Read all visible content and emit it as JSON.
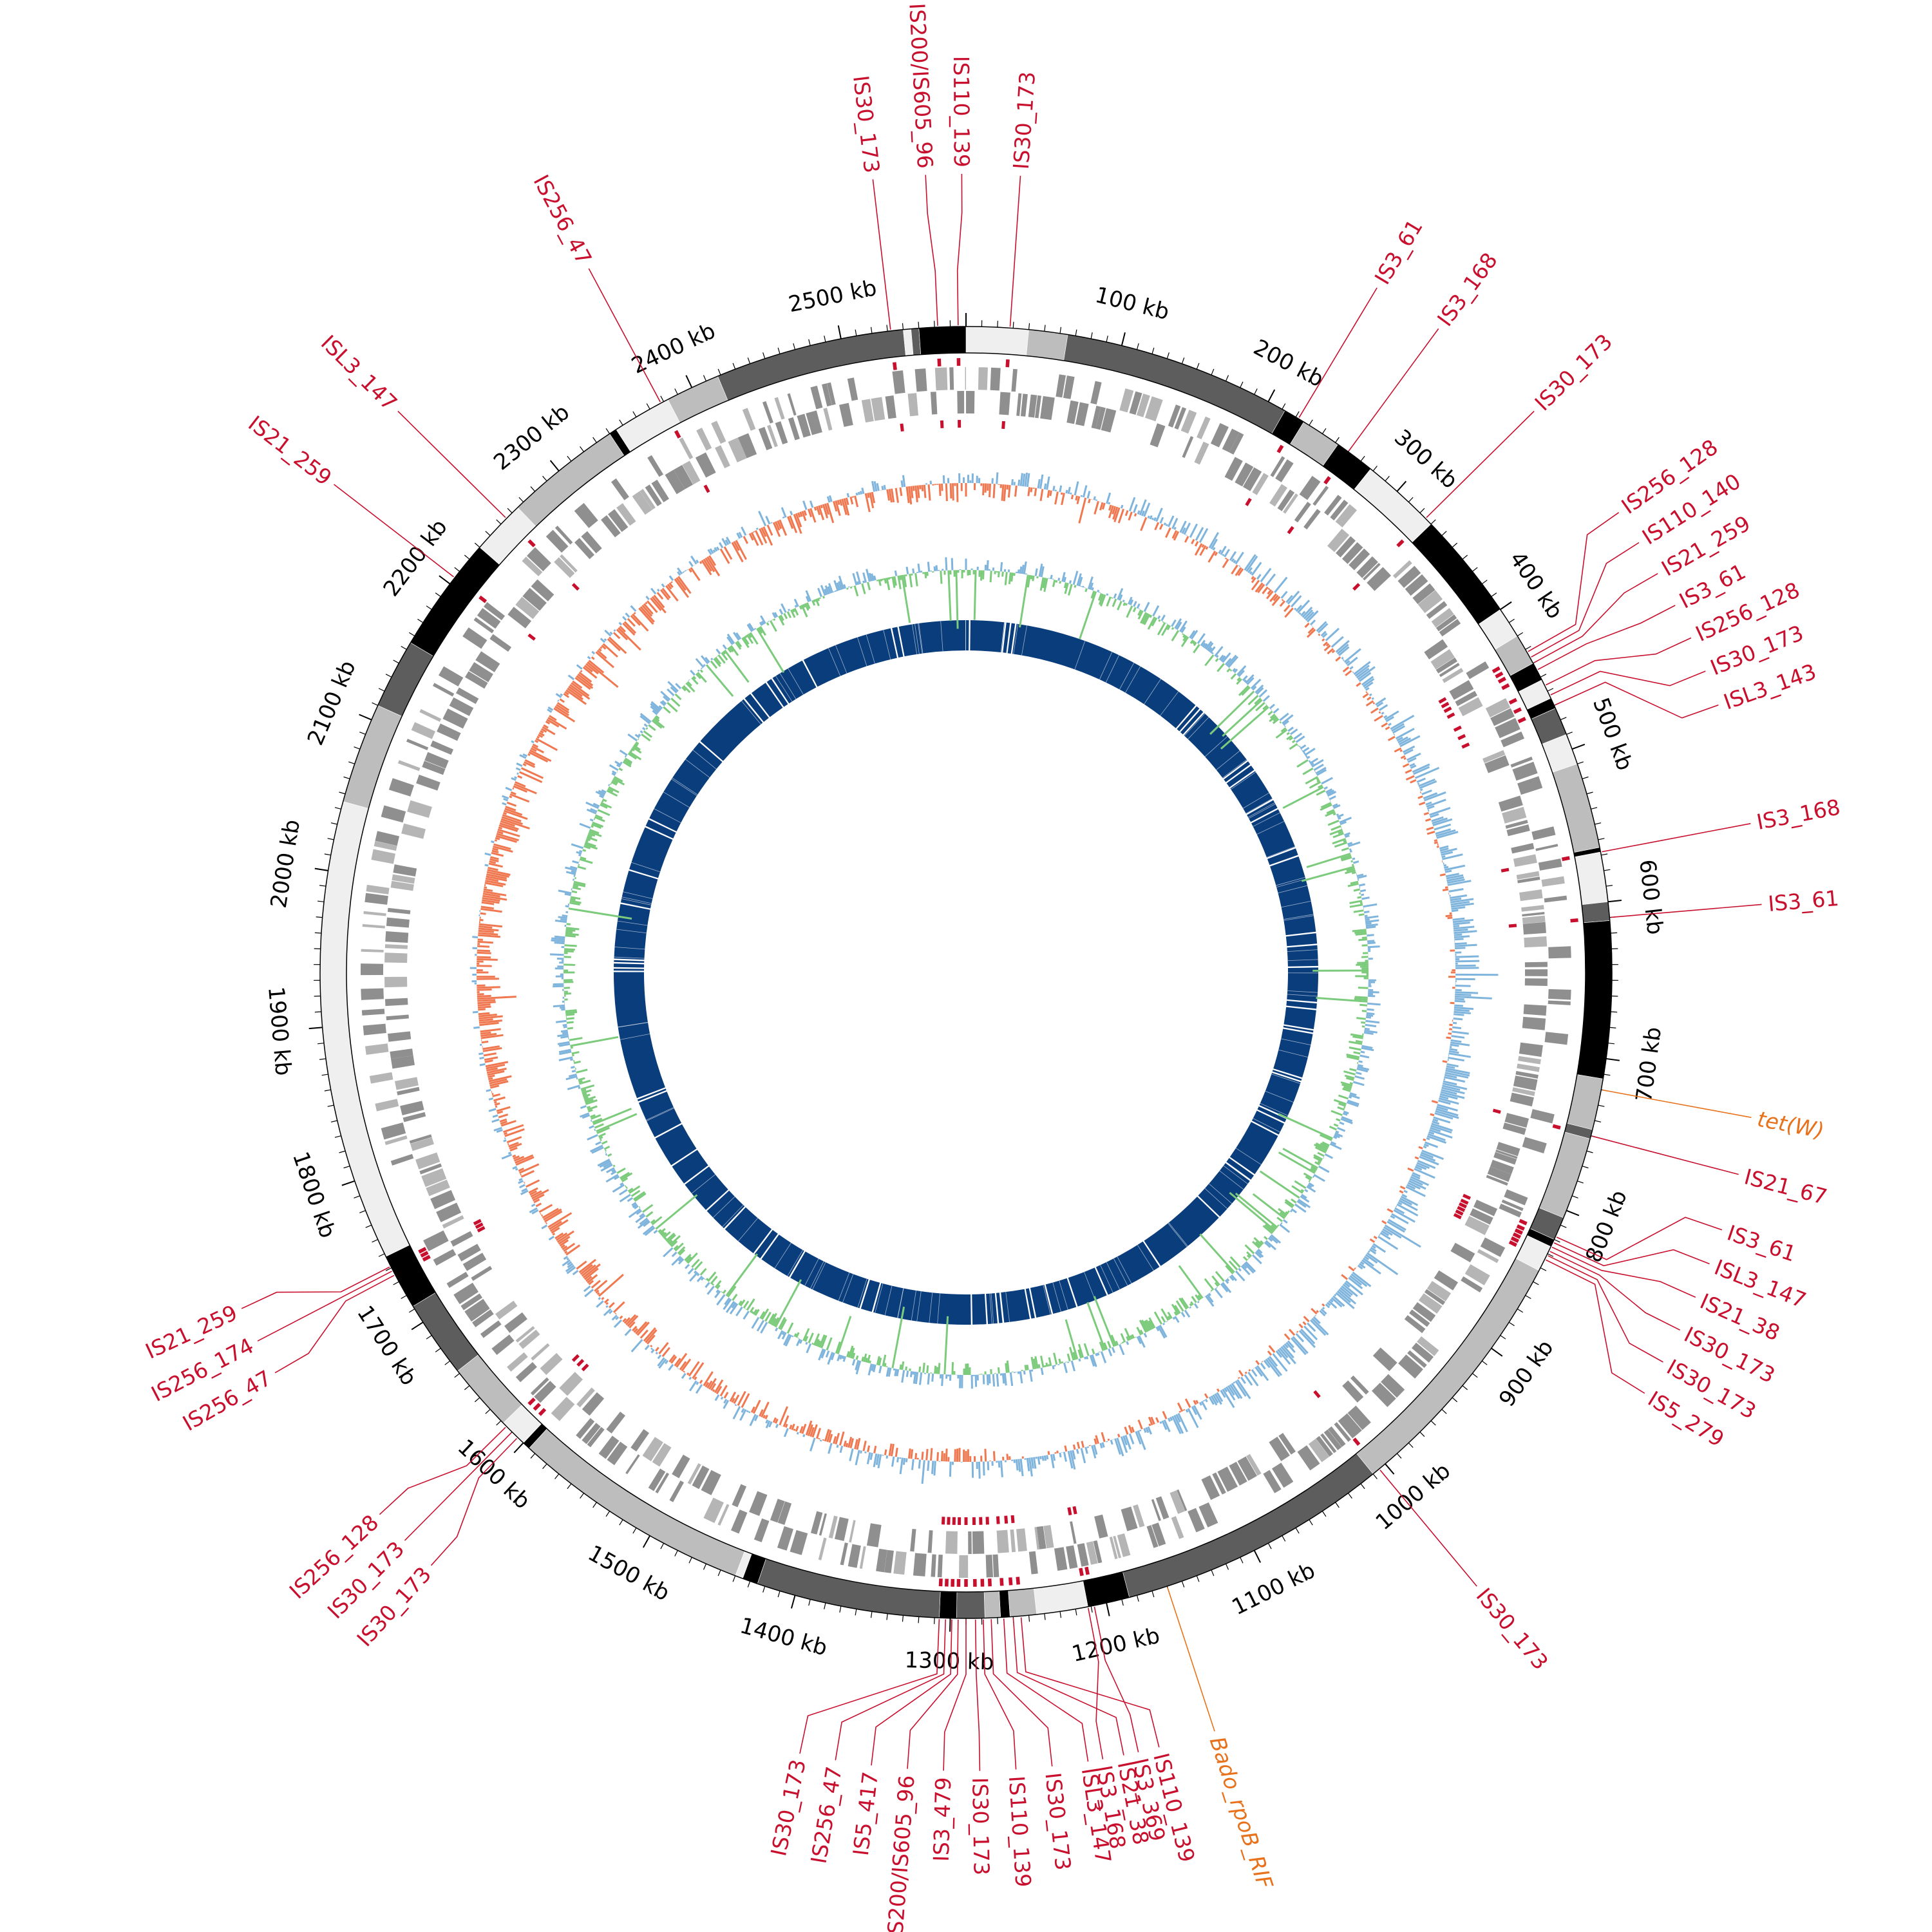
{
  "genome_map": {
    "genome_length_kb": 2580,
    "colors": {
      "is_element": "#c8102e",
      "resistance_gene": "#e8721c",
      "cds_gray": "#9a9a9a",
      "gc_skew_positive": "#f07850",
      "gc_skew_negative": "#7fb4dc",
      "gc_content_green": "#7ccb7c",
      "gc_content_blue": "#7fb4dc",
      "blast_blue": "#0a3d7c",
      "contig_dark": "#5d5d5d",
      "contig_black": "#000000",
      "contig_light": "#efefef",
      "contig_mid": "#bdbdbd"
    },
    "scale_labels": [
      "100 kb",
      "200 kb",
      "300 kb",
      "400 kb",
      "500 kb",
      "600 kb",
      "700 kb",
      "800 kb",
      "900 kb",
      "1000 kb",
      "1100 kb",
      "1200 kb",
      "1300 kb",
      "1400 kb",
      "1500 kb",
      "1600 kb",
      "1700 kb",
      "1800 kb",
      "1900 kb",
      "2000 kb",
      "2100 kb",
      "2200 kb",
      "2300 kb",
      "2400 kb",
      "2500 kb"
    ],
    "contigs": [
      {
        "start": 0,
        "end": 40,
        "shade": "light"
      },
      {
        "start": 40,
        "end": 65,
        "shade": "mid"
      },
      {
        "start": 65,
        "end": 212,
        "shade": "dark"
      },
      {
        "start": 212,
        "end": 226,
        "shade": "black"
      },
      {
        "start": 226,
        "end": 252,
        "shade": "mid"
      },
      {
        "start": 252,
        "end": 278,
        "shade": "black"
      },
      {
        "start": 278,
        "end": 330,
        "shade": "light"
      },
      {
        "start": 330,
        "end": 400,
        "shade": "black"
      },
      {
        "start": 400,
        "end": 420,
        "shade": "light"
      },
      {
        "start": 420,
        "end": 440,
        "shade": "mid"
      },
      {
        "start": 440,
        "end": 452,
        "shade": "black"
      },
      {
        "start": 452,
        "end": 465,
        "shade": "light"
      },
      {
        "start": 465,
        "end": 472,
        "shade": "black"
      },
      {
        "start": 472,
        "end": 490,
        "shade": "dark"
      },
      {
        "start": 490,
        "end": 510,
        "shade": "light"
      },
      {
        "start": 510,
        "end": 565,
        "shade": "mid"
      },
      {
        "start": 565,
        "end": 568,
        "shade": "black"
      },
      {
        "start": 568,
        "end": 600,
        "shade": "light"
      },
      {
        "start": 600,
        "end": 612,
        "shade": "dark"
      },
      {
        "start": 612,
        "end": 713,
        "shade": "black"
      },
      {
        "start": 713,
        "end": 746,
        "shade": "mid"
      },
      {
        "start": 746,
        "end": 752,
        "shade": "dark"
      },
      {
        "start": 752,
        "end": 805,
        "shade": "mid"
      },
      {
        "start": 805,
        "end": 820,
        "shade": "dark"
      },
      {
        "start": 820,
        "end": 825,
        "shade": "black"
      },
      {
        "start": 825,
        "end": 842,
        "shade": "light"
      },
      {
        "start": 842,
        "end": 1010,
        "shade": "mid"
      },
      {
        "start": 1010,
        "end": 1185,
        "shade": "dark"
      },
      {
        "start": 1185,
        "end": 1212,
        "shade": "black"
      },
      {
        "start": 1212,
        "end": 1245,
        "shade": "light"
      },
      {
        "start": 1245,
        "end": 1262,
        "shade": "mid"
      },
      {
        "start": 1262,
        "end": 1268,
        "shade": "black"
      },
      {
        "start": 1268,
        "end": 1278,
        "shade": "mid"
      },
      {
        "start": 1278,
        "end": 1296,
        "shade": "dark"
      },
      {
        "start": 1296,
        "end": 1307,
        "shade": "black"
      },
      {
        "start": 1307,
        "end": 1425,
        "shade": "dark"
      },
      {
        "start": 1425,
        "end": 1435,
        "shade": "black"
      },
      {
        "start": 1435,
        "end": 1440,
        "shade": "light"
      },
      {
        "start": 1440,
        "end": 1595,
        "shade": "mid"
      },
      {
        "start": 1595,
        "end": 1600,
        "shade": "black"
      },
      {
        "start": 1600,
        "end": 1618,
        "shade": "light"
      },
      {
        "start": 1618,
        "end": 1662,
        "shade": "mid"
      },
      {
        "start": 1662,
        "end": 1712,
        "shade": "dark"
      },
      {
        "start": 1712,
        "end": 1748,
        "shade": "black"
      },
      {
        "start": 1748,
        "end": 2045,
        "shade": "light"
      },
      {
        "start": 2045,
        "end": 2110,
        "shade": "mid"
      },
      {
        "start": 2110,
        "end": 2155,
        "shade": "dark"
      },
      {
        "start": 2155,
        "end": 2230,
        "shade": "black"
      },
      {
        "start": 2230,
        "end": 2265,
        "shade": "light"
      },
      {
        "start": 2265,
        "end": 2340,
        "shade": "mid"
      },
      {
        "start": 2340,
        "end": 2345,
        "shade": "black"
      },
      {
        "start": 2345,
        "end": 2383,
        "shade": "light"
      },
      {
        "start": 2383,
        "end": 2418,
        "shade": "mid"
      },
      {
        "start": 2418,
        "end": 2540,
        "shade": "dark"
      },
      {
        "start": 2540,
        "end": 2545,
        "shade": "light"
      },
      {
        "start": 2545,
        "end": 2550,
        "shade": "dark"
      },
      {
        "start": 2550,
        "end": 2580,
        "shade": "black"
      }
    ],
    "features": [
      {
        "label": "IS30_173",
        "pos": 2532,
        "kind": "is"
      },
      {
        "label": "IS200/IS605_96",
        "pos": 2562,
        "kind": "is"
      },
      {
        "label": "IS110_139",
        "pos": 2575,
        "kind": "is"
      },
      {
        "label": "IS30_173",
        "pos": 28,
        "kind": "is"
      },
      {
        "label": "IS256_47",
        "pos": 2378,
        "kind": "is"
      },
      {
        "label": "ISL3_147",
        "pos": 2255,
        "kind": "is"
      },
      {
        "label": "IS21_259",
        "pos": 2205,
        "kind": "is"
      },
      {
        "label": "IS3_61",
        "pos": 222,
        "kind": "is"
      },
      {
        "label": "IS3_168",
        "pos": 260,
        "kind": "is"
      },
      {
        "label": "IS30_173",
        "pos": 325,
        "kind": "is"
      },
      {
        "label": "IS256_128",
        "pos": 432,
        "kind": "is"
      },
      {
        "label": "IS110_140",
        "pos": 436,
        "kind": "is"
      },
      {
        "label": "IS21_259",
        "pos": 440,
        "kind": "is"
      },
      {
        "label": "IS3_61",
        "pos": 445,
        "kind": "is"
      },
      {
        "label": "IS256_128",
        "pos": 456,
        "kind": "is"
      },
      {
        "label": "IS30_173",
        "pos": 463,
        "kind": "is"
      },
      {
        "label": "ISL3_143",
        "pos": 470,
        "kind": "is"
      },
      {
        "label": "IS3_168",
        "pos": 568,
        "kind": "is"
      },
      {
        "label": "IS3_61",
        "pos": 610,
        "kind": "is"
      },
      {
        "label": "tet(W)",
        "pos": 720,
        "kind": "res"
      },
      {
        "label": "IS21_67",
        "pos": 750,
        "kind": "is"
      },
      {
        "label": "IS3_61",
        "pos": 818,
        "kind": "is"
      },
      {
        "label": "ISL3_147",
        "pos": 822,
        "kind": "is"
      },
      {
        "label": "IS21_38",
        "pos": 825,
        "kind": "is"
      },
      {
        "label": "IS30_173",
        "pos": 828,
        "kind": "is"
      },
      {
        "label": "IS30_173",
        "pos": 831,
        "kind": "is"
      },
      {
        "label": "IS5_279",
        "pos": 834,
        "kind": "is"
      },
      {
        "label": "IS30_173",
        "pos": 1005,
        "kind": "is"
      },
      {
        "label": "Bado_rpoB_RIF",
        "pos": 1160,
        "kind": "res"
      },
      {
        "label": "IS3_369",
        "pos": 1208,
        "kind": "is"
      },
      {
        "label": "IS3_168",
        "pos": 1212,
        "kind": "is"
      },
      {
        "label": "IS110_139",
        "pos": 1255,
        "kind": "is"
      },
      {
        "label": "IS21_38",
        "pos": 1260,
        "kind": "is"
      },
      {
        "label": "ISL3_147",
        "pos": 1266,
        "kind": "is"
      },
      {
        "label": "IS30_173",
        "pos": 1274,
        "kind": "is"
      },
      {
        "label": "IS110_139",
        "pos": 1279,
        "kind": "is"
      },
      {
        "label": "IS30_173",
        "pos": 1284,
        "kind": "is"
      },
      {
        "label": "IS3_479",
        "pos": 1290,
        "kind": "is"
      },
      {
        "label": "IS200/IS605_96",
        "pos": 1295,
        "kind": "is"
      },
      {
        "label": "IS5_417",
        "pos": 1299,
        "kind": "is"
      },
      {
        "label": "IS256_47",
        "pos": 1303,
        "kind": "is"
      },
      {
        "label": "IS30_173",
        "pos": 1307,
        "kind": "is"
      },
      {
        "label": "IS30_173",
        "pos": 1605,
        "kind": "is"
      },
      {
        "label": "IS30_173",
        "pos": 1610,
        "kind": "is"
      },
      {
        "label": "IS256_128",
        "pos": 1615,
        "kind": "is"
      },
      {
        "label": "IS256_47",
        "pos": 1735,
        "kind": "is"
      },
      {
        "label": "IS256_174",
        "pos": 1738,
        "kind": "is"
      },
      {
        "label": "IS21_259",
        "pos": 1741,
        "kind": "is"
      }
    ],
    "blast_gaps_kb": [
      4,
      46,
      52,
      58,
      292,
      298,
      304,
      380,
      386,
      394,
      434,
      446,
      496,
      506,
      598,
      612,
      638,
      680,
      688,
      712,
      716,
      770,
      774,
      820,
      826,
      842,
      896,
      904,
      960,
      1050,
      1120,
      1158,
      1188,
      1208,
      1214,
      1246,
      1252,
      1265,
      1283,
      1400,
      1415,
      1505,
      1545,
      1555,
      1600,
      1630,
      1670,
      1696,
      1734,
      1780,
      1784,
      1936,
      1940,
      1946,
      1950,
      2016,
      2056,
      2110,
      2120,
      2228,
      2300,
      2310,
      2332,
      2340,
      2382,
      2492,
      2500
    ]
  }
}
